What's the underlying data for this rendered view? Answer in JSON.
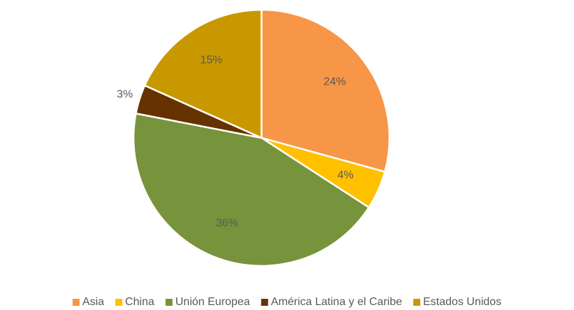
{
  "chart_data": {
    "type": "pie",
    "categories": [
      "Asia",
      "China",
      "Unión Europea",
      "América Latina y el Caribe",
      "Estados Unidos"
    ],
    "values": [
      24,
      4,
      36,
      3,
      15
    ],
    "value_labels": [
      "24%",
      "4%",
      "36%",
      "3%",
      "15%"
    ],
    "colors": [
      "#f79646",
      "#ffc000",
      "#77933c",
      "#663300",
      "#c89800"
    ],
    "legend": "bottom"
  }
}
